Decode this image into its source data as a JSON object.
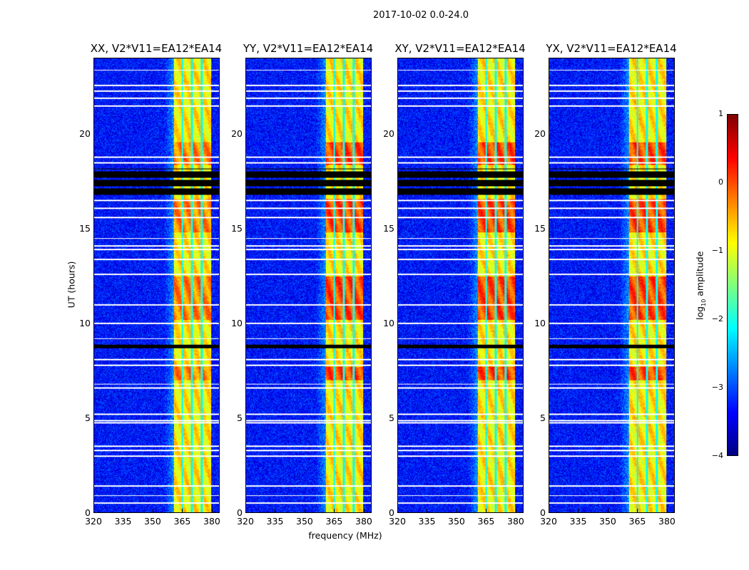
{
  "suptitle": "2017-10-02 0.0-24.0",
  "chart_data": {
    "type": "heatmap",
    "title": "2017-10-02 0.0-24.0",
    "xlabel": "frequency (MHz)",
    "ylabel": "UT (hours)",
    "xlim": [
      320,
      384
    ],
    "ylim": [
      0,
      24
    ],
    "xticks": [
      "320",
      "335",
      "350",
      "365",
      "380"
    ],
    "yticks": [
      "0",
      "5",
      "10",
      "15",
      "20"
    ],
    "panels": [
      {
        "title": "XX, V2*V11=EA12*EA14"
      },
      {
        "title": "YY, V2*V11=EA12*EA14"
      },
      {
        "title": "XY, V2*V11=EA12*EA14"
      },
      {
        "title": "YX, V2*V11=EA12*EA14"
      }
    ],
    "signal_band_mhz": [
      360.5,
      380
    ],
    "signal_subband_gaps_mhz": [
      365,
      370,
      375
    ],
    "background_log_amplitude": -3.3,
    "band_log_amplitude": -0.8,
    "strong_periods_hours": [
      [
        7.0,
        7.7
      ],
      [
        10.2,
        12.5
      ],
      [
        14.8,
        16.6
      ],
      [
        18.4,
        19.6
      ]
    ],
    "flagged_black_hours": [
      [
        16.8,
        18.2
      ],
      [
        8.7,
        8.9
      ]
    ],
    "flagged_white_hours": [
      0.5,
      0.9,
      1.4,
      3.0,
      3.3,
      3.5,
      4.75,
      4.85,
      5.2,
      6.6,
      6.8,
      7.8,
      8.1,
      9.2,
      10.0,
      11.0,
      12.6,
      13.4,
      13.9,
      14.1,
      14.5,
      15.6,
      16.1,
      16.5,
      18.5,
      18.8,
      21.5,
      21.9,
      22.3,
      22.6,
      23.4
    ],
    "colorbar": {
      "label": "log",
      "label_sub": "10",
      "label_rest": " amplitude",
      "range": [
        -4,
        1
      ],
      "colormap": "jet",
      "ticks": [
        "1",
        "0",
        "−1",
        "−2",
        "−3",
        "−4"
      ]
    }
  }
}
